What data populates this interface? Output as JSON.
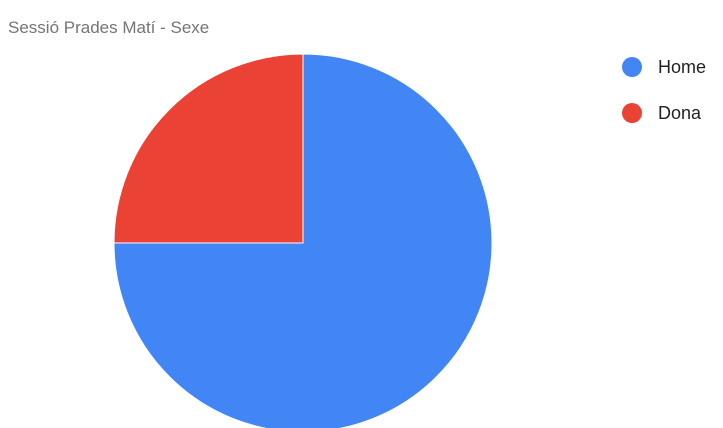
{
  "chart_data": {
    "type": "pie",
    "title": "Sessió Prades Matí - Sexe",
    "categories": [
      "Home",
      "Dona"
    ],
    "values": [
      75,
      25
    ],
    "colors": [
      "#4285f4",
      "#ea4335"
    ],
    "start_angle_deg": 0,
    "direction": "clockwise",
    "legend_position": "right"
  }
}
